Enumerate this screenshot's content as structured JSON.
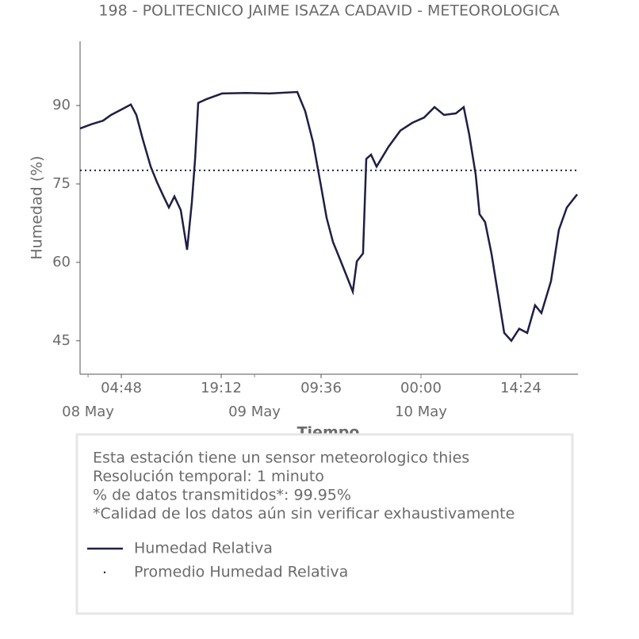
{
  "chart_data": {
    "type": "line",
    "title": "198 - POLITECNICO JAIME ISAZA CADAVID - METEOROLOGICA",
    "xlabel": "Tiempo",
    "ylabel": "Humedad (%)",
    "x": [
      "07 May 22:51",
      "08 May 00:27",
      "08 May 02:10",
      "08 May 03:19",
      "08 May 05:02",
      "08 May 06:10",
      "08 May 06:58",
      "08 May 07:53",
      "08 May 09:02",
      "08 May 09:57",
      "08 May 10:45",
      "08 May 11:39",
      "08 May 12:27",
      "08 May 13:22",
      "08 May 14:17",
      "08 May 14:58",
      "08 May 15:26",
      "08 May 15:53",
      "08 May 17:02",
      "08 May 19:19",
      "08 May 22:45",
      "09 May 02:10",
      "09 May 06:10",
      "09 May 07:19",
      "09 May 08:27",
      "09 May 09:36",
      "09 May 10:24",
      "09 May 11:19",
      "09 May 12:27",
      "09 May 13:22",
      "09 May 14:10",
      "09 May 14:45",
      "09 May 15:39",
      "09 May 16:07",
      "09 May 16:48",
      "09 May 17:36",
      "09 May 19:19",
      "09 May 21:02",
      "09 May 22:45",
      "10 May 00:27",
      "10 May 01:57",
      "10 May 03:19",
      "10 May 05:02",
      "10 May 06:10",
      "10 May 06:58",
      "10 May 07:53",
      "10 May 08:27",
      "10 May 09:15",
      "10 May 10:10",
      "10 May 11:05",
      "10 May 12:00",
      "10 May 13:02",
      "10 May 14:10",
      "10 May 15:19",
      "10 May 16:27",
      "10 May 17:22",
      "10 May 18:45",
      "10 May 19:53",
      "10 May 21:02",
      "10 May 22:31"
    ],
    "series": [
      {
        "name": "Humedad Relativa",
        "color": "#1f1f45",
        "values": [
          85.6,
          86.4,
          87.1,
          88.2,
          89.4,
          90.2,
          88.2,
          83.6,
          78.3,
          75.3,
          73,
          70.5,
          72.6,
          70,
          62.4,
          71.5,
          79.8,
          90.5,
          91.2,
          92.3,
          92.4,
          92.3,
          92.6,
          88.9,
          82.9,
          74.5,
          68.5,
          63.9,
          60.2,
          57.1,
          54.4,
          60.2,
          61.7,
          79.8,
          80.6,
          78.3,
          82.1,
          85.2,
          86.7,
          87.7,
          89.7,
          88.2,
          88.5,
          89.7,
          84.4,
          76.8,
          69.2,
          67.7,
          61.7,
          54.1,
          46.5,
          45,
          47.3,
          46.5,
          51.8,
          50.3,
          56.4,
          66.2,
          70.5,
          73
        ]
      }
    ],
    "mean_line": {
      "name": "Promedio Humedad Relativa",
      "value": 77.6,
      "color": "#1f1f45"
    },
    "xlim": [
      "07 May 22:51",
      "10 May 22:38"
    ],
    "xticks": [
      {
        "value": "08 May 04:48",
        "label": "04:48"
      },
      {
        "value": "08 May 19:12",
        "label": "19:12"
      },
      {
        "value": "09 May 09:36",
        "label": "09:36"
      },
      {
        "value": "10 May 00:00",
        "label": "00:00"
      },
      {
        "value": "10 May 14:24",
        "label": "14:24"
      }
    ],
    "day_ticks": [
      {
        "value": "08 May 00:00",
        "label": "08 May"
      },
      {
        "value": "09 May 00:00",
        "label": "09 May"
      },
      {
        "value": "10 May 00:00",
        "label": "10 May"
      }
    ],
    "ylim": [
      38.6,
      102.3
    ],
    "yticks": [
      45,
      60,
      75,
      90
    ],
    "info": [
      "Esta estación tiene un sensor meteorologico thies",
      "Resolución temporal: 1 minuto",
      "% de datos transmitidos*: 99.95%",
      "*Calidad de los datos aún sin verificar exhaustivamente"
    ]
  }
}
